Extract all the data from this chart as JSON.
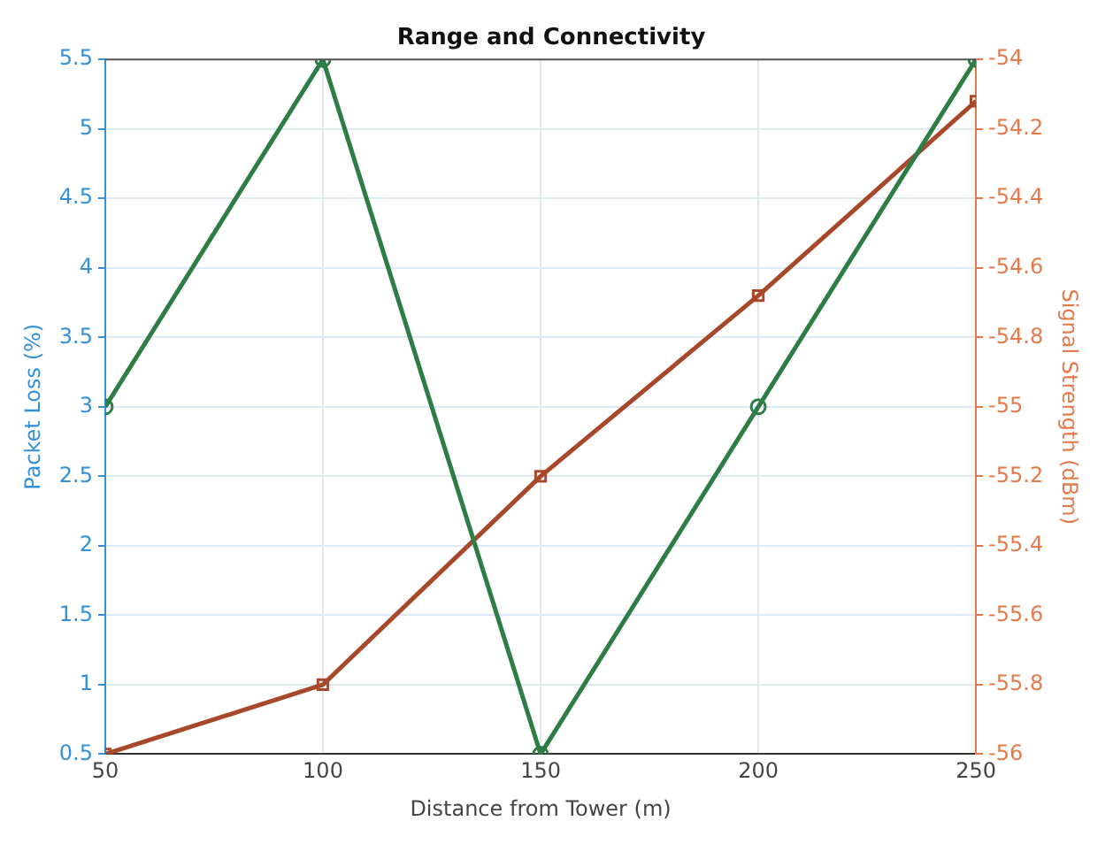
{
  "chart_data": {
    "type": "line",
    "title": "Range and Connectivity",
    "xlabel": "Distance from Tower (m)",
    "ylabel": "Packet Loss (%)",
    "y2label": "Signal Strength (dBm)",
    "x": [
      50,
      100,
      150,
      200,
      250
    ],
    "xlim": [
      50,
      250
    ],
    "xticks": [
      50,
      100,
      150,
      200,
      250
    ],
    "ylim": [
      0.5,
      5.5
    ],
    "yticks": [
      0.5,
      1,
      1.5,
      2,
      2.5,
      3,
      3.5,
      4,
      4.5,
      5,
      5.5
    ],
    "y2lim": [
      -56,
      -54
    ],
    "y2ticks": [
      -56,
      -55.8,
      -55.6,
      -55.4,
      -55.2,
      -55,
      -54.8,
      -54.6,
      -54.4,
      -54.2,
      -54
    ],
    "grid": true,
    "legend": false,
    "line_style": "solid",
    "series": [
      {
        "color": "#2e7d46",
        "values": [
          3,
          5.5,
          0.5,
          3,
          5.5
        ],
        "marker": "circle"
      },
      {
        "color": "#a8482a",
        "values": [
          -56,
          -55.8,
          -55.2,
          -54.68,
          -54.12
        ],
        "marker": "square",
        "axis": "y2"
      }
    ]
  }
}
